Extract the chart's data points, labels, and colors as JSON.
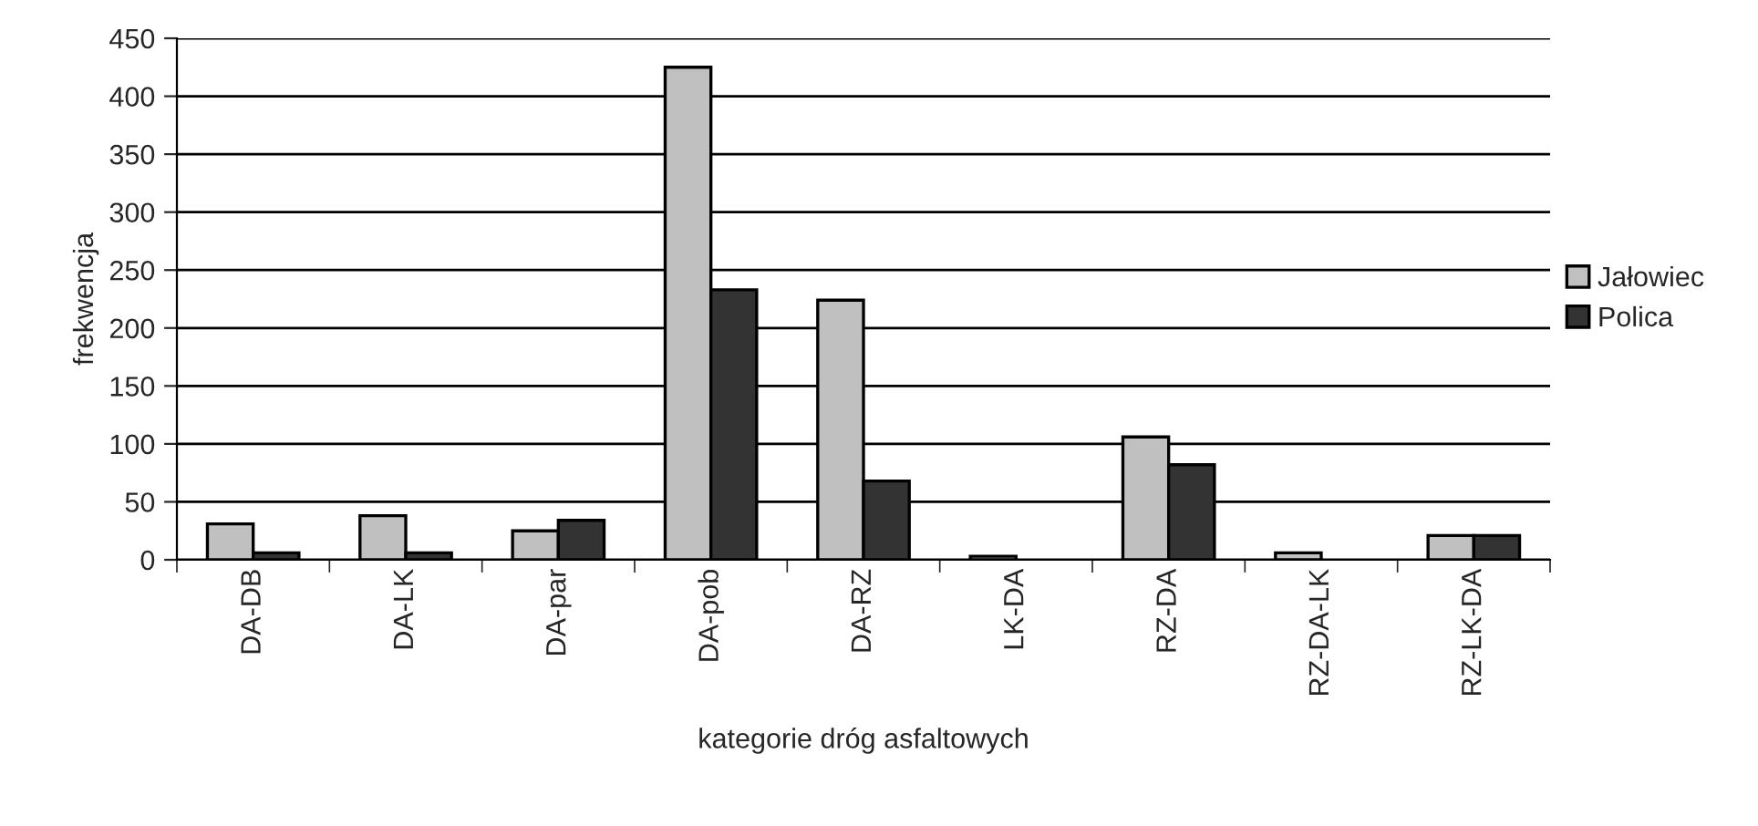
{
  "chart_data": {
    "type": "bar",
    "xlabel": "kategorie dróg asfaltowych",
    "ylabel": "frekwencja",
    "categories": [
      "DA-DB",
      "DA-LK",
      "DA-par",
      "DA-pob",
      "DA-RZ",
      "LK-DA",
      "RZ-DA",
      "RZ-DA-LK",
      "RZ-LK-DA"
    ],
    "series": [
      {
        "name": "Jałowiec",
        "color": "#c0c0c0",
        "values": [
          31,
          38,
          25,
          425,
          224,
          3,
          106,
          6,
          21
        ]
      },
      {
        "name": "Polica",
        "color": "#333333",
        "values": [
          6,
          6,
          34,
          233,
          68,
          null,
          82,
          null,
          21
        ]
      }
    ],
    "ylim": [
      0,
      450
    ],
    "yticks": [
      0,
      50,
      100,
      150,
      200,
      250,
      300,
      350,
      400,
      450
    ],
    "grid": "y",
    "legend": "right"
  }
}
